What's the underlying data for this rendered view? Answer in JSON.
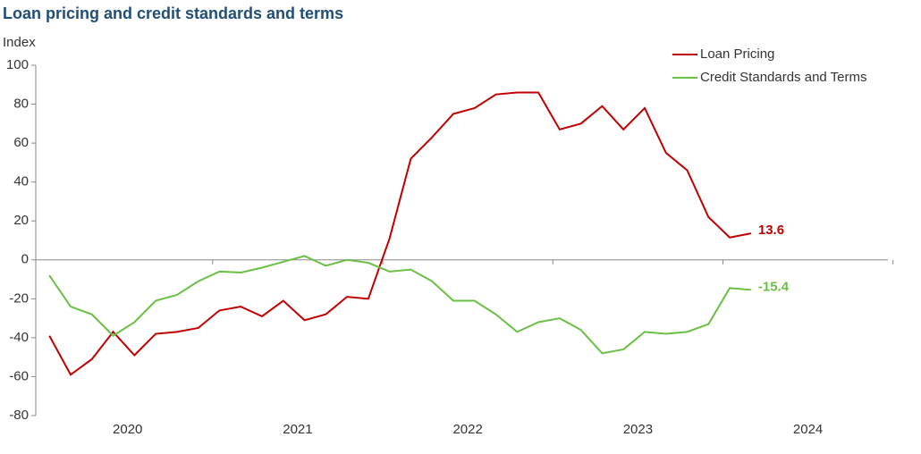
{
  "chart_data": {
    "type": "line",
    "title": "Loan pricing and credit standards and terms",
    "y_label": "Index",
    "xlim": [
      2019.96,
      2024.97
    ],
    "xticks": [
      2020,
      2021,
      2022,
      2023,
      2024
    ],
    "ylim": [
      -80,
      100
    ],
    "yticks": [
      -80,
      -60,
      -40,
      -20,
      0,
      20,
      40,
      60,
      80,
      100
    ],
    "legend": "top-right",
    "x": [
      2020.04,
      2020.165,
      2020.29,
      2020.415,
      2020.54,
      2020.665,
      2020.79,
      2020.915,
      2021.04,
      2021.165,
      2021.29,
      2021.415,
      2021.54,
      2021.665,
      2021.79,
      2021.915,
      2022.04,
      2022.165,
      2022.29,
      2022.415,
      2022.54,
      2022.665,
      2022.79,
      2022.915,
      2023.04,
      2023.165,
      2023.29,
      2023.415,
      2023.54,
      2023.665,
      2023.79,
      2023.915,
      2024.04,
      2024.165
    ],
    "series": [
      {
        "name": "Loan Pricing",
        "color": "#c00000",
        "values": [
          -39,
          -59,
          -51,
          -37,
          -49,
          -38,
          -37,
          -35,
          -26,
          -24,
          -29,
          -21,
          -31,
          -28,
          -19,
          -20,
          11,
          52,
          63,
          75,
          78,
          85,
          86,
          86,
          67,
          70,
          79,
          67,
          78,
          55,
          46,
          22,
          11.5,
          13.6
        ],
        "value_labels": [
          null,
          null,
          null,
          null,
          null,
          null,
          null,
          null,
          null,
          null,
          null,
          null,
          null,
          null,
          null,
          null,
          null,
          null,
          null,
          null,
          null,
          null,
          null,
          null,
          null,
          null,
          null,
          null,
          null,
          null,
          null,
          null,
          null,
          "13.6"
        ]
      },
      {
        "name": "Credit Standards and Terms",
        "color": "#6abf45",
        "values": [
          -8,
          -24,
          -28,
          -39,
          -32,
          -21,
          -18,
          -11,
          -6,
          -6.5,
          -4,
          -1,
          2,
          -3,
          0,
          -1.5,
          -6,
          -5,
          -11,
          -21,
          -21,
          -28,
          -37,
          -32,
          -30,
          -36,
          -48,
          -46,
          -37,
          -38,
          -37,
          -33,
          -14.5,
          -15.4
        ],
        "value_labels": [
          null,
          null,
          null,
          null,
          null,
          null,
          null,
          null,
          null,
          null,
          null,
          null,
          null,
          null,
          null,
          null,
          null,
          null,
          null,
          null,
          null,
          null,
          null,
          null,
          null,
          null,
          null,
          null,
          null,
          null,
          null,
          null,
          null,
          "-15.4"
        ]
      }
    ]
  }
}
